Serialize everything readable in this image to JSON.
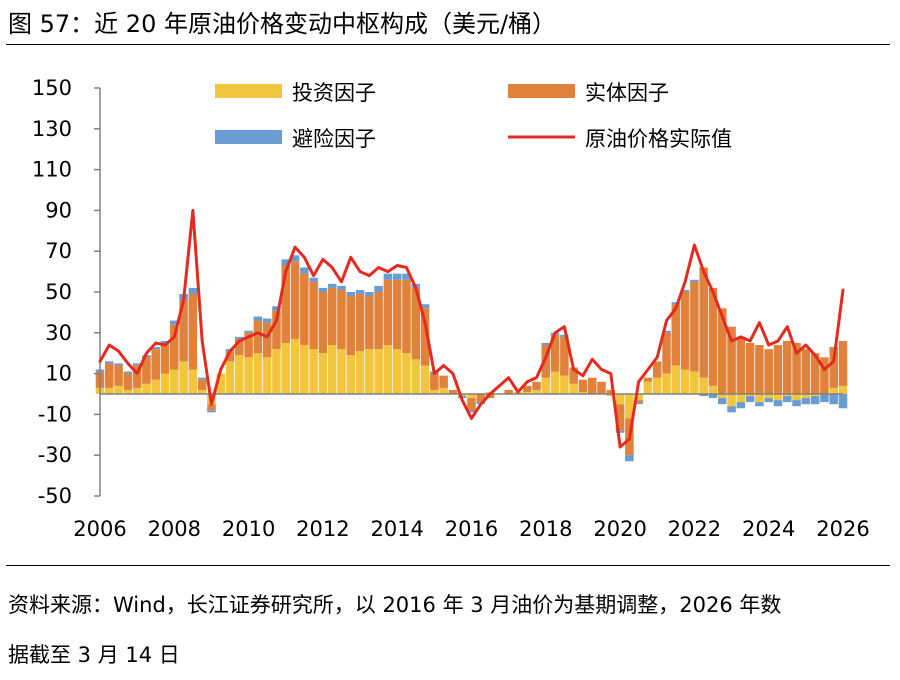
{
  "figure": {
    "title": "图 57：近 20 年原油价格变动中枢构成（美元/桶）",
    "source_line1": "资料来源：Wind，长江证券研究所，以 2016 年 3 月油价为基期调整，2026 年数",
    "source_line2": "据截至 3 月 14 日"
  },
  "colors": {
    "safe_haven": "#6A9BD1",
    "physical": "#E0823C",
    "investment": "#F3C43E",
    "price_line": "#E32B20",
    "axis": "#808080"
  },
  "chart_data": {
    "type": "bar",
    "stacked": true,
    "title": "近 20 年原油价格变动中枢构成（美元/桶）",
    "ylim": [
      -50,
      150
    ],
    "yticks": [
      "150",
      "130",
      "110",
      "90",
      "70",
      "50",
      "30",
      "10",
      "-10",
      "-30",
      "-50"
    ],
    "xlim": [
      2006,
      2026
    ],
    "xticks": [
      "2006",
      "2008",
      "2010",
      "2012",
      "2014",
      "2016",
      "2018",
      "2020",
      "2022",
      "2024",
      "2026"
    ],
    "legend": {
      "investment": "投资因子",
      "physical": "实体因子",
      "safe_haven": "避险因子",
      "price": "原油价格实际值"
    },
    "x_years": [
      2006.0,
      2006.25,
      2006.5,
      2006.75,
      2007.0,
      2007.25,
      2007.5,
      2007.75,
      2008.0,
      2008.25,
      2008.5,
      2008.75,
      2009.0,
      2009.25,
      2009.5,
      2009.75,
      2010.0,
      2010.25,
      2010.5,
      2010.75,
      2011.0,
      2011.25,
      2011.5,
      2011.75,
      2012.0,
      2012.25,
      2012.5,
      2012.75,
      2013.0,
      2013.25,
      2013.5,
      2013.75,
      2014.0,
      2014.25,
      2014.5,
      2014.75,
      2015.0,
      2015.25,
      2015.5,
      2015.75,
      2016.0,
      2016.25,
      2016.5,
      2016.75,
      2017.0,
      2017.25,
      2017.5,
      2017.75,
      2018.0,
      2018.25,
      2018.5,
      2018.75,
      2019.0,
      2019.25,
      2019.5,
      2019.75,
      2020.0,
      2020.25,
      2020.5,
      2020.75,
      2021.0,
      2021.25,
      2021.5,
      2021.75,
      2022.0,
      2022.25,
      2022.5,
      2022.75,
      2023.0,
      2023.25,
      2023.5,
      2023.75,
      2024.0,
      2024.25,
      2024.5,
      2024.75,
      2025.0,
      2025.25,
      2025.5,
      2025.75,
      2026.0
    ],
    "series": [
      {
        "key": "investment",
        "name": "投资因子",
        "values": [
          3,
          3,
          4,
          2,
          3,
          5,
          7,
          10,
          12,
          16,
          12,
          2,
          -5,
          10,
          16,
          19,
          18,
          20,
          18,
          22,
          25,
          27,
          24,
          22,
          20,
          24,
          22,
          19,
          21,
          22,
          22,
          24,
          22,
          20,
          17,
          14,
          2,
          3,
          0,
          -1,
          -2,
          0,
          1,
          0,
          0,
          1,
          1,
          2,
          8,
          11,
          9,
          5,
          1,
          0,
          0,
          -1,
          -5,
          -12,
          -3,
          6,
          8,
          10,
          14,
          12,
          11,
          8,
          4,
          -2,
          -6,
          -4,
          -1,
          -4,
          -2,
          -3,
          -1,
          -3,
          -2,
          -1,
          0,
          3,
          4
        ]
      },
      {
        "key": "physical",
        "name": "实体因子",
        "values": [
          8,
          12,
          10,
          8,
          11,
          13,
          15,
          14,
          22,
          30,
          37,
          5,
          -3,
          0,
          5,
          8,
          12,
          16,
          17,
          19,
          38,
          38,
          35,
          33,
          30,
          28,
          29,
          29,
          28,
          26,
          28,
          32,
          34,
          36,
          35,
          28,
          8,
          6,
          2,
          0,
          -6,
          -4,
          -2,
          0,
          2,
          0,
          3,
          4,
          16,
          18,
          19,
          8,
          6,
          8,
          6,
          2,
          -13,
          -18,
          -1,
          2,
          8,
          20,
          30,
          38,
          44,
          54,
          48,
          42,
          33,
          28,
          25,
          24,
          22,
          24,
          26,
          25,
          22,
          20,
          18,
          20,
          22
        ]
      },
      {
        "key": "safe_haven",
        "name": "避险因子",
        "values": [
          1,
          1,
          1,
          1,
          1,
          1,
          1,
          2,
          2,
          3,
          3,
          1,
          -1,
          0,
          1,
          1,
          1,
          2,
          2,
          2,
          3,
          3,
          3,
          2,
          2,
          2,
          2,
          2,
          2,
          2,
          3,
          3,
          3,
          3,
          2,
          2,
          1,
          0,
          0,
          -1,
          -1,
          -1,
          0,
          0,
          0,
          0,
          0,
          0,
          1,
          1,
          1,
          0,
          0,
          0,
          0,
          0,
          -1,
          -3,
          -1,
          0,
          0,
          1,
          1,
          1,
          1,
          -1,
          -2,
          -3,
          -3,
          -3,
          -3,
          -2,
          -2,
          -3,
          -3,
          -3,
          -3,
          -4,
          -4,
          -5,
          -7
        ]
      },
      {
        "key": "price",
        "name": "原油价格实际值",
        "type": "line",
        "values": [
          16,
          24,
          21,
          15,
          10,
          20,
          25,
          24,
          28,
          46,
          90,
          26,
          -5,
          12,
          21,
          26,
          28,
          30,
          28,
          36,
          60,
          72,
          67,
          58,
          66,
          62,
          55,
          67,
          60,
          58,
          62,
          60,
          63,
          62,
          52,
          35,
          10,
          14,
          10,
          -3,
          -12,
          -5,
          0,
          4,
          8,
          1,
          6,
          8,
          18,
          30,
          33,
          12,
          9,
          17,
          12,
          10,
          -26,
          -22,
          6,
          12,
          18,
          36,
          42,
          55,
          73,
          60,
          50,
          38,
          26,
          28,
          26,
          35,
          24,
          26,
          33,
          20,
          24,
          19,
          12,
          16,
          51
        ]
      }
    ]
  }
}
